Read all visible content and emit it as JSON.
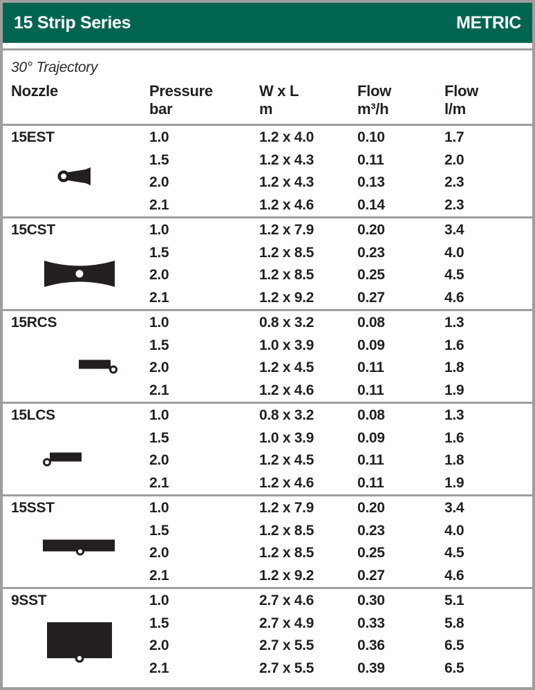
{
  "header": {
    "title": "15 Strip Series",
    "units_label": "METRIC"
  },
  "subtitle": "30° Trajectory",
  "columns": [
    {
      "label": "Nozzle",
      "sub": ""
    },
    {
      "label": "Pressure",
      "sub": "bar"
    },
    {
      "label": "W x L",
      "sub": "m"
    },
    {
      "label": "Flow",
      "sub": "m³/h"
    },
    {
      "label": "Flow",
      "sub": "l/m"
    }
  ],
  "groups": [
    {
      "nozzle": "15EST",
      "icon": "end-strip-nozzle-icon",
      "rows": [
        {
          "pressure": "1.0",
          "wxl": "1.2 x 4.0",
          "flow_m3h": "0.10",
          "flow_lm": "1.7"
        },
        {
          "pressure": "1.5",
          "wxl": "1.2 x 4.3",
          "flow_m3h": "0.11",
          "flow_lm": "2.0"
        },
        {
          "pressure": "2.0",
          "wxl": "1.2 x 4.3",
          "flow_m3h": "0.13",
          "flow_lm": "2.3"
        },
        {
          "pressure": "2.1",
          "wxl": "1.2 x 4.6",
          "flow_m3h": "0.14",
          "flow_lm": "2.3"
        }
      ]
    },
    {
      "nozzle": "15CST",
      "icon": "center-strip-nozzle-icon",
      "rows": [
        {
          "pressure": "1.0",
          "wxl": "1.2 x 7.9",
          "flow_m3h": "0.20",
          "flow_lm": "3.4"
        },
        {
          "pressure": "1.5",
          "wxl": "1.2 x 8.5",
          "flow_m3h": "0.23",
          "flow_lm": "4.0"
        },
        {
          "pressure": "2.0",
          "wxl": "1.2 x 8.5",
          "flow_m3h": "0.25",
          "flow_lm": "4.5"
        },
        {
          "pressure": "2.1",
          "wxl": "1.2 x 9.2",
          "flow_m3h": "0.27",
          "flow_lm": "4.6"
        }
      ]
    },
    {
      "nozzle": "15RCS",
      "icon": "right-corner-strip-nozzle-icon",
      "rows": [
        {
          "pressure": "1.0",
          "wxl": "0.8 x 3.2",
          "flow_m3h": "0.08",
          "flow_lm": "1.3"
        },
        {
          "pressure": "1.5",
          "wxl": "1.0 x 3.9",
          "flow_m3h": "0.09",
          "flow_lm": "1.6"
        },
        {
          "pressure": "2.0",
          "wxl": "1.2 x 4.5",
          "flow_m3h": "0.11",
          "flow_lm": "1.8"
        },
        {
          "pressure": "2.1",
          "wxl": "1.2 x 4.6",
          "flow_m3h": "0.11",
          "flow_lm": "1.9"
        }
      ]
    },
    {
      "nozzle": "15LCS",
      "icon": "left-corner-strip-nozzle-icon",
      "rows": [
        {
          "pressure": "1.0",
          "wxl": "0.8 x 3.2",
          "flow_m3h": "0.08",
          "flow_lm": "1.3"
        },
        {
          "pressure": "1.5",
          "wxl": "1.0 x 3.9",
          "flow_m3h": "0.09",
          "flow_lm": "1.6"
        },
        {
          "pressure": "2.0",
          "wxl": "1.2 x 4.5",
          "flow_m3h": "0.11",
          "flow_lm": "1.8"
        },
        {
          "pressure": "2.1",
          "wxl": "1.2 x 4.6",
          "flow_m3h": "0.11",
          "flow_lm": "1.9"
        }
      ]
    },
    {
      "nozzle": "15SST",
      "icon": "side-strip-nozzle-icon",
      "rows": [
        {
          "pressure": "1.0",
          "wxl": "1.2 x 7.9",
          "flow_m3h": "0.20",
          "flow_lm": "3.4"
        },
        {
          "pressure": "1.5",
          "wxl": "1.2 x 8.5",
          "flow_m3h": "0.23",
          "flow_lm": "4.0"
        },
        {
          "pressure": "2.0",
          "wxl": "1.2 x 8.5",
          "flow_m3h": "0.25",
          "flow_lm": "4.5"
        },
        {
          "pressure": "2.1",
          "wxl": "1.2 x 9.2",
          "flow_m3h": "0.27",
          "flow_lm": "4.6"
        }
      ]
    },
    {
      "nozzle": "9SST",
      "icon": "square-strip-nozzle-icon",
      "rows": [
        {
          "pressure": "1.0",
          "wxl": "2.7 x 4.6",
          "flow_m3h": "0.30",
          "flow_lm": "5.1"
        },
        {
          "pressure": "1.5",
          "wxl": "2.7 x 4.9",
          "flow_m3h": "0.33",
          "flow_lm": "5.8"
        },
        {
          "pressure": "2.0",
          "wxl": "2.7 x 5.5",
          "flow_m3h": "0.36",
          "flow_lm": "6.5"
        },
        {
          "pressure": "2.1",
          "wxl": "2.7 x 5.5",
          "flow_m3h": "0.39",
          "flow_lm": "6.5"
        }
      ]
    }
  ],
  "colors": {
    "header_green": "#006550",
    "border_gray": "#9e9e9e",
    "text_black": "#231f20"
  }
}
